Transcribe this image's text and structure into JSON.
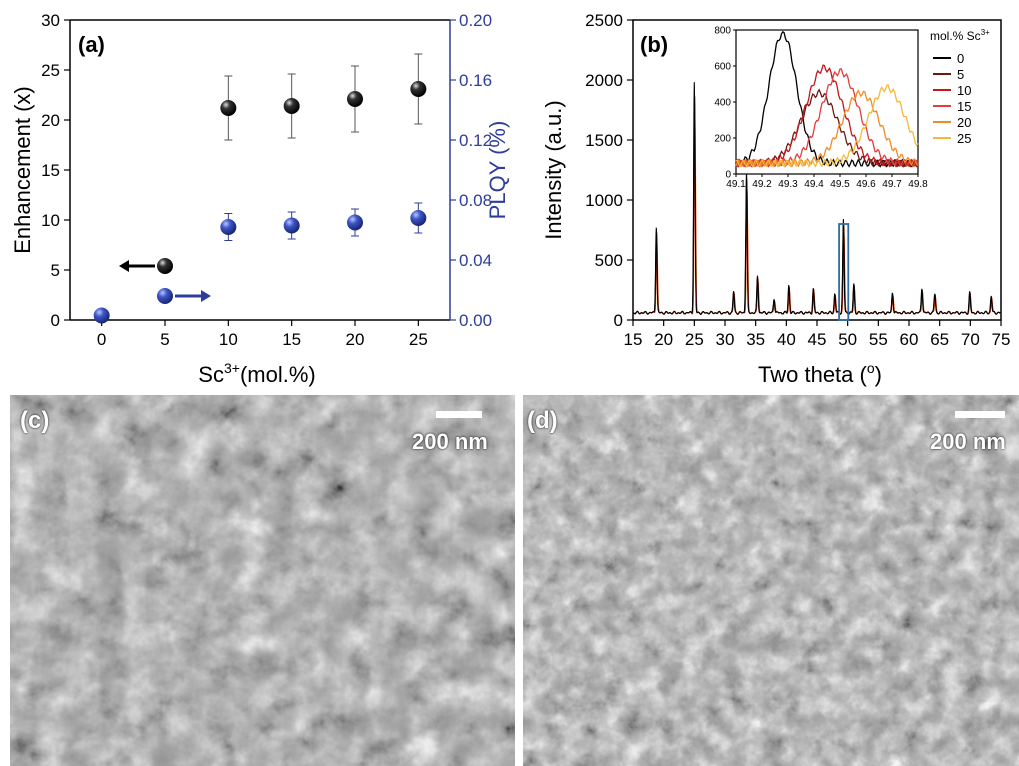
{
  "chart_data": [
    {
      "panel": "(a)",
      "type": "scatter",
      "xlabel": "Sc",
      "xlabel_sup": "3+",
      "xlabel_tail": "(mol.%)",
      "ylabel": "Enhancement (x)",
      "y2label": "PLQY (%)",
      "x_ticks": [
        0,
        5,
        10,
        15,
        20,
        25
      ],
      "xlim": [
        -2.5,
        27.5
      ],
      "ylim": [
        0,
        30
      ],
      "y_ticks": [
        0,
        5,
        10,
        15,
        20,
        25,
        30
      ],
      "y2lim": [
        0,
        0.2
      ],
      "y2_ticks": [
        "0.00",
        "0.04",
        "0.08",
        "0.12",
        "0.16",
        "0.20"
      ],
      "left_color": "#000000",
      "right_color": "#2e3d9a",
      "series": [
        {
          "axis": "left",
          "color": "#111111",
          "points": [
            {
              "x": 5,
              "y": 5.4
            },
            {
              "x": 10,
              "y": 21.2,
              "err": 3.2
            },
            {
              "x": 15,
              "y": 21.4,
              "err": 3.2
            },
            {
              "x": 20,
              "y": 22.1,
              "err": 3.3
            },
            {
              "x": 25,
              "y": 23.1,
              "err": 3.5
            }
          ]
        },
        {
          "axis": "right",
          "color": "#2e3d9a",
          "points": [
            {
              "x": 0,
              "y": 0.003
            },
            {
              "x": 5,
              "y": 0.016
            },
            {
              "x": 10,
              "y": 0.062,
              "err": 0.009
            },
            {
              "x": 15,
              "y": 0.063,
              "err": 0.009
            },
            {
              "x": 20,
              "y": 0.065,
              "err": 0.009
            },
            {
              "x": 25,
              "y": 0.068,
              "err": 0.01
            }
          ]
        }
      ]
    },
    {
      "panel": "(b)",
      "type": "line",
      "xlabel": "Two theta (",
      "xlabel_sup": "o",
      "xlabel_tail": ")",
      "ylabel": "Intensity (a.u.)",
      "xlim": [
        15,
        75
      ],
      "x_ticks": [
        15,
        20,
        25,
        30,
        35,
        40,
        45,
        50,
        55,
        60,
        65,
        70,
        75
      ],
      "ylim": [
        0,
        2500
      ],
      "y_ticks": [
        0,
        500,
        1000,
        1500,
        2000,
        2500
      ],
      "baseline": 60,
      "peaks": [
        {
          "x": 18.8,
          "h": 720
        },
        {
          "x": 25.0,
          "h": 1920
        },
        {
          "x": 31.4,
          "h": 180
        },
        {
          "x": 33.5,
          "h": 1180
        },
        {
          "x": 35.3,
          "h": 310
        },
        {
          "x": 38.0,
          "h": 120
        },
        {
          "x": 40.4,
          "h": 230
        },
        {
          "x": 44.4,
          "h": 200
        },
        {
          "x": 47.9,
          "h": 160
        },
        {
          "x": 49.3,
          "h": 780
        },
        {
          "x": 51.0,
          "h": 240
        },
        {
          "x": 57.3,
          "h": 170
        },
        {
          "x": 62.1,
          "h": 210
        },
        {
          "x": 64.2,
          "h": 160
        },
        {
          "x": 69.9,
          "h": 170
        },
        {
          "x": 73.4,
          "h": 140
        }
      ],
      "highlight_box": {
        "x0": 48.6,
        "x1": 50.1,
        "y0": 0,
        "y1": 800
      },
      "inset": {
        "xlim": [
          49.1,
          49.8
        ],
        "x_ticks": [
          "49.1",
          "49.2",
          "49.3",
          "49.4",
          "49.5",
          "49.6",
          "49.7",
          "49.8"
        ],
        "ylim": [
          0,
          800
        ],
        "y_ticks": [
          0,
          200,
          400,
          600,
          800
        ],
        "series": [
          {
            "name": "0",
            "color": "#000000",
            "peak_x": 49.28,
            "peak_y": 780
          },
          {
            "name": "5",
            "color": "#6b1a12",
            "peak_x": 49.42,
            "peak_y": 450
          },
          {
            "name": "10",
            "color": "#c4161c",
            "peak_x": 49.44,
            "peak_y": 590
          },
          {
            "name": "15",
            "color": "#e23c3c",
            "peak_x": 49.5,
            "peak_y": 570
          },
          {
            "name": "20",
            "color": "#f08a24",
            "peak_x": 49.58,
            "peak_y": 450
          },
          {
            "name": "25",
            "color": "#f5b83a",
            "peak_x": 49.68,
            "peak_y": 480
          }
        ]
      },
      "legend_title": "mol.% Sc",
      "legend_title_sup": "3+"
    }
  ],
  "sem": {
    "c": {
      "label": "(c)",
      "scale": "200 nm"
    },
    "d": {
      "label": "(d)",
      "scale": "200 nm"
    }
  }
}
